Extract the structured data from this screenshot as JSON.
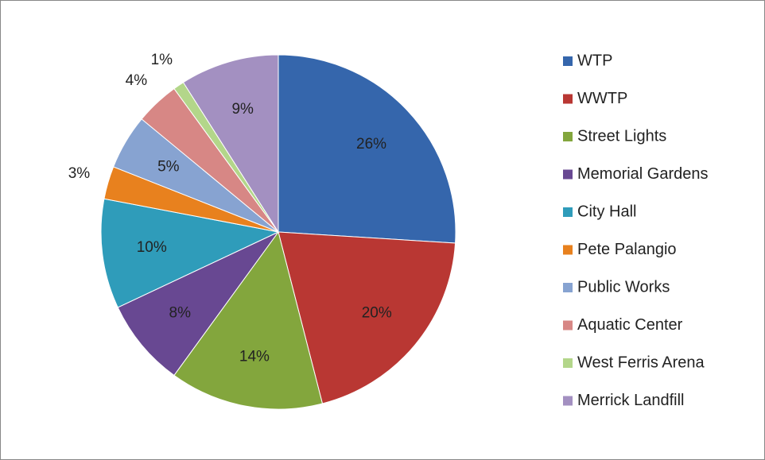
{
  "chart_data": {
    "type": "pie",
    "categories": [
      "WTP",
      "WWTP",
      "Street Lights",
      "Memorial Gardens",
      "City Hall",
      "Pete Palangio",
      "Public Works",
      "Aquatic Center",
      "West Ferris Arena",
      "Merrick Landfill"
    ],
    "values": [
      26,
      20,
      14,
      8,
      10,
      3,
      5,
      4,
      1,
      9
    ],
    "value_labels": [
      "26%",
      "20%",
      "14%",
      "8%",
      "10%",
      "3%",
      "5%",
      "4%",
      "1%",
      "9%"
    ],
    "colors": [
      "#3566ac",
      "#b93733",
      "#83a63d",
      "#684892",
      "#2f9cba",
      "#e8811e",
      "#87a3d1",
      "#d78785",
      "#b3d68a",
      "#a390c1"
    ],
    "legend": "right"
  }
}
